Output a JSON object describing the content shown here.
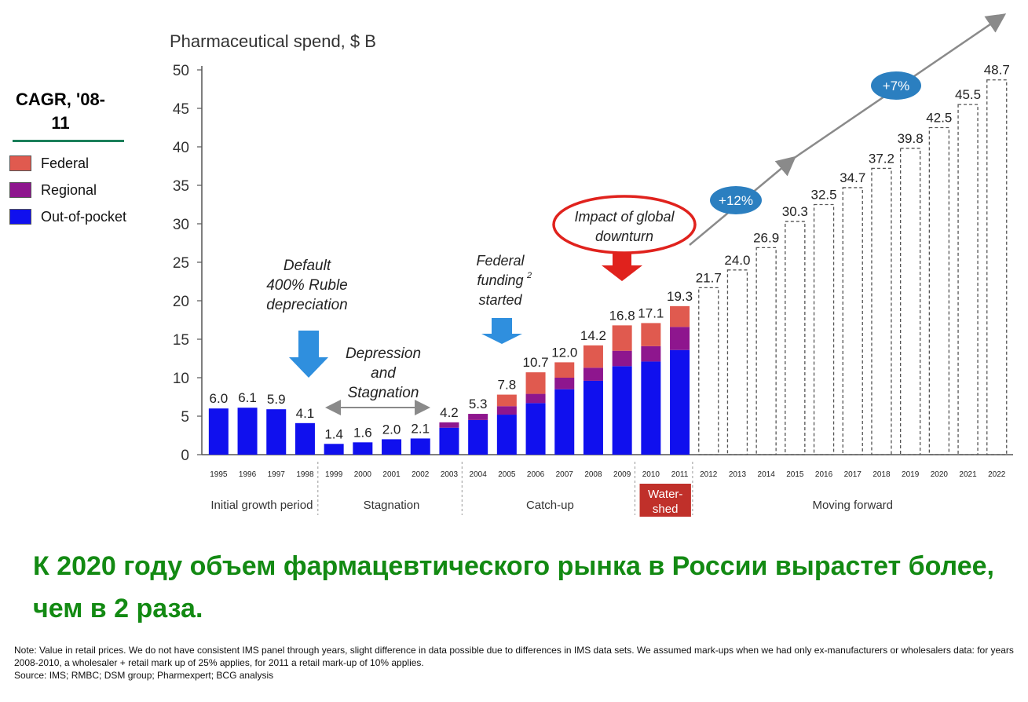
{
  "legend": {
    "title": "CAGR, '08-11",
    "items": [
      {
        "label": "Federal",
        "color": "#e05a4f"
      },
      {
        "label": "Regional",
        "color": "#8e168e"
      },
      {
        "label": "Out-of-pocket",
        "color": "#1010ee"
      }
    ]
  },
  "chart_data": {
    "type": "bar",
    "title": "Pharmaceutical spend, $ B",
    "ylim": [
      0,
      50
    ],
    "yticks": [
      0,
      5,
      10,
      15,
      20,
      25,
      30,
      35,
      40,
      45,
      50
    ],
    "grid": false,
    "categories": [
      "1995",
      "1996",
      "1997",
      "1998",
      "1999",
      "2000",
      "2001",
      "2002",
      "2003",
      "2004",
      "2005",
      "2006",
      "2007",
      "2008",
      "2009",
      "2010",
      "2011",
      "2012",
      "2013",
      "2014",
      "2015",
      "2016",
      "2017",
      "2018",
      "2019",
      "2020",
      "2021",
      "2022"
    ],
    "totals": [
      "6.0",
      "6.1",
      "5.9",
      "4.1",
      "1.4",
      "1.6",
      "2.0",
      "2.1",
      "4.2",
      "5.3",
      "7.8",
      "10.7",
      "12.0",
      "14.2",
      "16.8",
      "17.1",
      "19.3",
      "21.7",
      "24.0",
      "26.9",
      "30.3",
      "32.5",
      "34.7",
      "37.2",
      "39.8",
      "42.5",
      "45.5",
      "48.7"
    ],
    "series": [
      {
        "name": "Out-of-pocket",
        "color": "#1010ee",
        "values": [
          6.0,
          6.1,
          5.9,
          4.1,
          1.4,
          1.6,
          2.0,
          2.1,
          3.5,
          4.5,
          5.2,
          6.7,
          8.5,
          9.6,
          11.5,
          12.1,
          13.6,
          null,
          null,
          null,
          null,
          null,
          null,
          null,
          null,
          null,
          null,
          null
        ]
      },
      {
        "name": "Regional",
        "color": "#8e168e",
        "values": [
          0,
          0,
          0,
          0,
          0,
          0,
          0,
          0,
          0.7,
          0.8,
          1.1,
          1.2,
          1.5,
          1.7,
          2.0,
          2.0,
          3.0,
          null,
          null,
          null,
          null,
          null,
          null,
          null,
          null,
          null,
          null,
          null
        ]
      },
      {
        "name": "Federal",
        "color": "#e05a4f",
        "values": [
          0,
          0,
          0,
          0,
          0,
          0,
          0,
          0,
          0,
          0,
          1.5,
          2.8,
          2.0,
          2.9,
          3.3,
          3.0,
          2.7,
          null,
          null,
          null,
          null,
          null,
          null,
          null,
          null,
          null,
          null,
          null
        ]
      }
    ],
    "forecast_from": "2012",
    "periods": [
      {
        "label": "Initial growth period",
        "from": "1995",
        "to": "1998"
      },
      {
        "label": "Stagnation",
        "from": "1999",
        "to": "2003"
      },
      {
        "label": "Catch-up",
        "from": "2004",
        "to": "2009"
      },
      {
        "label": "Water-shed",
        "from": "2010",
        "to": "2011",
        "highlight": "#c0302a"
      },
      {
        "label": "Moving forward",
        "from": "2012",
        "to": "2022"
      }
    ],
    "annotations": {
      "default": [
        "Default",
        "400% Ruble",
        "depreciation"
      ],
      "depression": [
        "Depression",
        "and",
        "Stagnation"
      ],
      "federal_funding": [
        "Federal",
        "funding",
        "started"
      ],
      "federal_funding_sup": "2",
      "impact": [
        "Impact of global",
        "downturn"
      ],
      "cagr_12": "+12%",
      "cagr_7": "+7%"
    }
  },
  "headline": "К 2020 году объем фармацевтического рынка в России вырастет более, чем в 2 раза.",
  "notes": [
    "Note: Value in retail prices. We do not have consistent IMS panel through years, slight difference in data possible due to differences in IMS data sets. We assumed mark-ups when we had only ex-manufacturers or wholesalers data: for years 2008-2010, a wholesaler + retail mark up of 25% applies, for 2011 a retail mark-up of 10% applies.",
    "Source: IMS; RMBC; DSM group; Pharmexpert; BCG analysis"
  ]
}
